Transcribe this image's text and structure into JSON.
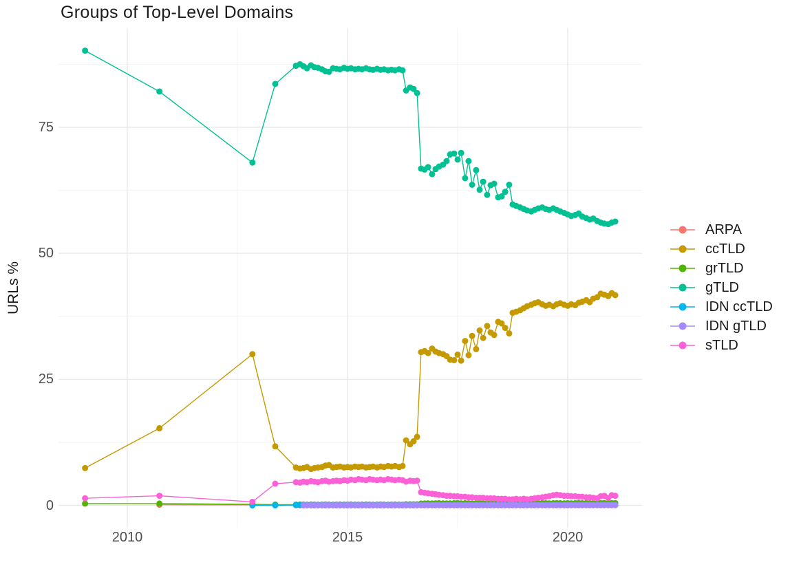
{
  "title": "Groups of Top-Level Domains",
  "y_axis_label": "URLs %",
  "legend": {
    "position": "right",
    "labels": [
      "ARPA",
      "ccTLD",
      "grTLD",
      "gTLD",
      "IDN ccTLD",
      "IDN gTLD",
      "sTLD"
    ]
  },
  "colors": {
    "background": "#ffffff",
    "grid_major": "#e7e7e7",
    "grid_minor": "#f3f3f3",
    "tick_text": "#4d4d4d",
    "title_text": "#1c1c1c"
  },
  "chart_data": {
    "type": "line",
    "title": "Groups of Top-Level Domains",
    "xlabel": "",
    "ylabel": "URLs %",
    "grid": true,
    "legend_position": "right",
    "xlim": [
      2008.44,
      2021.69
    ],
    "ylim": [
      -4.5,
      94.7
    ],
    "x_ticks": [
      2010,
      2015,
      2020
    ],
    "x_tick_labels": [
      "2010",
      "2015",
      "2020"
    ],
    "y_ticks": [
      0,
      25,
      50,
      75
    ],
    "y_tick_labels": [
      "0",
      "25",
      "50",
      "75"
    ],
    "x_minor_gridlines": [
      2012.5,
      2017.5
    ],
    "y_minor_gridlines": [
      12.5,
      37.5,
      62.5,
      87.5
    ],
    "x": [
      2009.04,
      2010.73,
      2012.84,
      2013.36,
      2013.83,
      2013.92,
      2014.0,
      2014.08,
      2014.17,
      2014.25,
      2014.33,
      2014.42,
      2014.5,
      2014.58,
      2014.67,
      2014.75,
      2014.83,
      2014.92,
      2015.0,
      2015.08,
      2015.17,
      2015.25,
      2015.33,
      2015.42,
      2015.5,
      2015.58,
      2015.67,
      2015.75,
      2015.83,
      2015.92,
      2016.0,
      2016.08,
      2016.17,
      2016.25,
      2016.33,
      2016.42,
      2016.5,
      2016.58,
      2016.67,
      2016.75,
      2016.83,
      2016.92,
      2017.0,
      2017.08,
      2017.17,
      2017.25,
      2017.33,
      2017.42,
      2017.5,
      2017.58,
      2017.67,
      2017.75,
      2017.83,
      2017.92,
      2018.0,
      2018.08,
      2018.17,
      2018.25,
      2018.33,
      2018.42,
      2018.5,
      2018.58,
      2018.67,
      2018.75,
      2018.83,
      2018.92,
      2019.0,
      2019.08,
      2019.17,
      2019.25,
      2019.33,
      2019.42,
      2019.5,
      2019.58,
      2019.67,
      2019.75,
      2019.83,
      2019.92,
      2020.0,
      2020.08,
      2020.17,
      2020.25,
      2020.33,
      2020.42,
      2020.5,
      2020.58,
      2020.67,
      2020.75,
      2020.83,
      2020.92,
      2021.0,
      2021.08
    ],
    "series": [
      {
        "name": "ARPA",
        "color": "#F8766D",
        "values": [
          null,
          0.12,
          0.1,
          0.05,
          0.03,
          0.03,
          0.03,
          0.03,
          0.03,
          0.03,
          0.03,
          0.03,
          0.03,
          0.03,
          0.03,
          0.03,
          0.03,
          0.03,
          0.03,
          0.03,
          0.03,
          0.03,
          0.03,
          0.03,
          0.03,
          0.03,
          0.03,
          0.03,
          0.03,
          0.03,
          0.03,
          0.03,
          0.03,
          0.03,
          0.03,
          0.03,
          0.03,
          0.03,
          0.03,
          0.03,
          0.03,
          0.03,
          0.03,
          0.03,
          0.03,
          0.03,
          0.03,
          0.03,
          0.03,
          0.03,
          0.03,
          0.03,
          0.03,
          0.03,
          0.03,
          0.03,
          0.03,
          0.03,
          0.03,
          0.03,
          0.03,
          0.03,
          0.03,
          0.03,
          0.03,
          0.03,
          0.03,
          0.03,
          0.03,
          0.03,
          0.03,
          0.03,
          0.03,
          0.03,
          0.03,
          0.03,
          0.03,
          0.03,
          0.03,
          0.03,
          0.03,
          0.03,
          0.03,
          0.03,
          0.03,
          0.03,
          0.03,
          0.03,
          0.03,
          0.03,
          0.03,
          0.03
        ]
      },
      {
        "name": "ccTLD",
        "color": "#C49A00",
        "values": [
          7.4,
          15.3,
          30.0,
          11.7,
          7.5,
          7.3,
          7.4,
          7.6,
          7.2,
          7.4,
          7.5,
          7.6,
          7.9,
          8.0,
          7.5,
          7.6,
          7.7,
          7.5,
          7.6,
          7.5,
          7.7,
          7.6,
          7.7,
          7.5,
          7.6,
          7.7,
          7.5,
          7.7,
          7.6,
          7.8,
          7.7,
          7.8,
          7.6,
          7.8,
          12.9,
          12.1,
          12.7,
          13.6,
          30.4,
          30.6,
          30.2,
          31.1,
          30.5,
          30.2,
          30.0,
          29.6,
          28.9,
          28.8,
          29.9,
          28.7,
          32.6,
          29.8,
          33.6,
          31.0,
          34.7,
          33.2,
          35.6,
          34.3,
          33.8,
          36.4,
          36.1,
          35.2,
          34.1,
          38.2,
          38.4,
          38.7,
          39.1,
          39.5,
          39.8,
          40.1,
          40.3,
          39.9,
          39.6,
          39.8,
          39.5,
          39.9,
          40.1,
          39.8,
          39.6,
          39.9,
          39.7,
          40.2,
          40.4,
          40.7,
          40.3,
          41.0,
          41.3,
          42.0,
          41.8,
          41.5,
          42.1,
          41.7
        ]
      },
      {
        "name": "grTLD",
        "color": "#53B400",
        "values": [
          0.35,
          0.35,
          0.2,
          0.15,
          0.15,
          0.16,
          0.15,
          0.14,
          0.16,
          0.15,
          0.14,
          0.15,
          0.16,
          0.15,
          0.14,
          0.15,
          0.16,
          0.15,
          0.15,
          0.16,
          0.15,
          0.14,
          0.15,
          0.16,
          0.15,
          0.14,
          0.15,
          0.16,
          0.15,
          0.14,
          0.15,
          0.16,
          0.15,
          0.14,
          0.2,
          0.2,
          0.2,
          0.2,
          0.35,
          0.38,
          0.4,
          0.38,
          0.4,
          0.42,
          0.4,
          0.38,
          0.4,
          0.42,
          0.44,
          0.4,
          0.42,
          0.4,
          0.38,
          0.4,
          0.42,
          0.4,
          0.38,
          0.4,
          0.42,
          0.4,
          0.42,
          0.44,
          0.42,
          0.4,
          0.42,
          0.4,
          0.38,
          0.4,
          0.42,
          0.4,
          0.42,
          0.44,
          0.42,
          0.4,
          0.42,
          0.44,
          0.42,
          0.4,
          0.42,
          0.4,
          0.42,
          0.44,
          0.42,
          0.44,
          0.42,
          0.4,
          0.42,
          0.44,
          0.46,
          0.44,
          0.45,
          0.45
        ]
      },
      {
        "name": "gTLD",
        "color": "#00C094",
        "values": [
          90.2,
          82.1,
          68.0,
          83.6,
          87.2,
          87.5,
          87.1,
          86.7,
          87.3,
          86.9,
          86.8,
          86.5,
          86.1,
          86.0,
          86.7,
          86.6,
          86.5,
          86.8,
          86.6,
          86.7,
          86.5,
          86.6,
          86.5,
          86.7,
          86.5,
          86.4,
          86.6,
          86.4,
          86.5,
          86.3,
          86.4,
          86.3,
          86.5,
          86.3,
          82.3,
          82.9,
          82.6,
          81.8,
          66.8,
          66.6,
          67.1,
          65.7,
          66.7,
          67.2,
          67.6,
          68.3,
          69.6,
          69.8,
          68.6,
          69.9,
          64.9,
          68.3,
          63.6,
          66.5,
          62.6,
          64.2,
          61.6,
          63.5,
          63.8,
          61.1,
          61.3,
          62.2,
          63.6,
          59.7,
          59.4,
          59.1,
          58.8,
          58.5,
          58.3,
          58.6,
          58.9,
          59.1,
          58.8,
          58.6,
          58.9,
          58.6,
          58.3,
          58.0,
          57.7,
          57.4,
          57.6,
          57.9,
          57.3,
          57.0,
          56.7,
          56.9,
          56.4,
          56.1,
          55.9,
          55.8,
          56.1,
          56.3
        ]
      },
      {
        "name": "IDN ccTLD",
        "color": "#00B6EB",
        "values": [
          null,
          null,
          0.0,
          0.0,
          0.05,
          0.05,
          0.05,
          0.05,
          0.05,
          0.05,
          0.05,
          0.05,
          0.05,
          0.05,
          0.05,
          0.05,
          0.05,
          0.05,
          0.05,
          0.05,
          0.05,
          0.05,
          0.05,
          0.05,
          0.05,
          0.05,
          0.05,
          0.05,
          0.05,
          0.05,
          0.05,
          0.05,
          0.05,
          0.05,
          0.05,
          0.05,
          0.05,
          0.05,
          0.06,
          0.06,
          0.06,
          0.06,
          0.06,
          0.06,
          0.06,
          0.06,
          0.06,
          0.06,
          0.06,
          0.06,
          0.06,
          0.06,
          0.06,
          0.06,
          0.06,
          0.06,
          0.06,
          0.06,
          0.06,
          0.06,
          0.06,
          0.06,
          0.06,
          0.06,
          0.06,
          0.06,
          0.06,
          0.06,
          0.06,
          0.06,
          0.06,
          0.06,
          0.06,
          0.06,
          0.06,
          0.06,
          0.06,
          0.06,
          0.07,
          0.07,
          0.07,
          0.07,
          0.07,
          0.07,
          0.07,
          0.07,
          0.07,
          0.07,
          0.07,
          0.07,
          0.07,
          0.07
        ]
      },
      {
        "name": "IDN gTLD",
        "color": "#A58AFF",
        "values": [
          null,
          null,
          null,
          null,
          null,
          null,
          0.02,
          0.02,
          0.02,
          0.02,
          0.02,
          0.02,
          0.02,
          0.02,
          0.02,
          0.02,
          0.02,
          0.02,
          0.02,
          0.02,
          0.02,
          0.02,
          0.02,
          0.02,
          0.02,
          0.02,
          0.02,
          0.02,
          0.02,
          0.02,
          0.02,
          0.02,
          0.02,
          0.02,
          0.02,
          0.02,
          0.02,
          0.02,
          0.03,
          0.03,
          0.03,
          0.03,
          0.03,
          0.03,
          0.03,
          0.03,
          0.03,
          0.03,
          0.03,
          0.03,
          0.03,
          0.03,
          0.03,
          0.03,
          0.03,
          0.03,
          0.03,
          0.03,
          0.03,
          0.03,
          0.03,
          0.03,
          0.03,
          0.03,
          0.03,
          0.03,
          0.04,
          0.04,
          0.04,
          0.04,
          0.04,
          0.04,
          0.04,
          0.04,
          0.04,
          0.04,
          0.04,
          0.04,
          0.05,
          0.05,
          0.05,
          0.05,
          0.05,
          0.05,
          0.05,
          0.05,
          0.05,
          0.05,
          0.05,
          0.05,
          0.05,
          0.05
        ]
      },
      {
        "name": "sTLD",
        "color": "#FB61D7",
        "values": [
          1.4,
          1.9,
          0.7,
          4.3,
          4.6,
          4.5,
          4.7,
          4.6,
          4.8,
          4.7,
          4.6,
          4.8,
          4.9,
          4.7,
          4.8,
          4.9,
          4.8,
          5.0,
          4.9,
          5.1,
          5.0,
          5.2,
          5.1,
          5.0,
          5.2,
          5.1,
          5.0,
          5.1,
          5.0,
          5.2,
          5.1,
          5.0,
          5.1,
          5.0,
          4.7,
          4.9,
          4.8,
          4.9,
          2.6,
          2.5,
          2.4,
          2.3,
          2.2,
          2.1,
          2.0,
          1.9,
          1.9,
          1.8,
          1.8,
          1.7,
          1.7,
          1.6,
          1.6,
          1.5,
          1.5,
          1.5,
          1.4,
          1.4,
          1.4,
          1.3,
          1.3,
          1.3,
          1.2,
          1.2,
          1.3,
          1.2,
          1.3,
          1.2,
          1.3,
          1.4,
          1.5,
          1.6,
          1.7,
          1.8,
          2.0,
          2.1,
          2.0,
          1.9,
          1.9,
          1.8,
          1.8,
          1.7,
          1.7,
          1.6,
          1.6,
          1.5,
          1.4,
          1.8,
          1.9,
          1.5,
          2.0,
          1.9
        ]
      }
    ]
  }
}
